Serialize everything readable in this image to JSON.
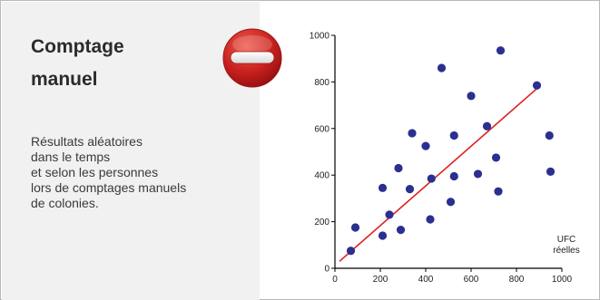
{
  "panel": {
    "title": "Comptage\nmanuel",
    "description": "Résultats aléatoires\ndans le temps\net selon les personnes\nlors de comptages manuels\nde colonies.",
    "icon": "no-entry-icon",
    "icon_color": "#c8201e"
  },
  "chart_data": {
    "type": "scatter",
    "xlabel": "UFC\nréelles",
    "ylabel": "",
    "xlim": [
      0,
      1000
    ],
    "ylim": [
      0,
      1000
    ],
    "xticks": [
      0,
      200,
      400,
      600,
      800,
      1000
    ],
    "yticks": [
      0,
      200,
      400,
      600,
      800,
      1000
    ],
    "point_color": "#2b2f8f",
    "line_color": "#e02020",
    "series": [
      {
        "points": [
          [
            70,
            75
          ],
          [
            90,
            175
          ],
          [
            210,
            345
          ],
          [
            210,
            140
          ],
          [
            240,
            230
          ],
          [
            280,
            430
          ],
          [
            290,
            165
          ],
          [
            330,
            340
          ],
          [
            340,
            580
          ],
          [
            400,
            525
          ],
          [
            420,
            210
          ],
          [
            425,
            385
          ],
          [
            470,
            860
          ],
          [
            510,
            285
          ],
          [
            525,
            395
          ],
          [
            525,
            570
          ],
          [
            600,
            740
          ],
          [
            630,
            405
          ],
          [
            670,
            610
          ],
          [
            710,
            475
          ],
          [
            720,
            330
          ],
          [
            730,
            935
          ],
          [
            890,
            785
          ],
          [
            945,
            570
          ],
          [
            950,
            415
          ]
        ]
      }
    ],
    "trendline": [
      [
        20,
        30
      ],
      [
        900,
        780
      ]
    ]
  }
}
